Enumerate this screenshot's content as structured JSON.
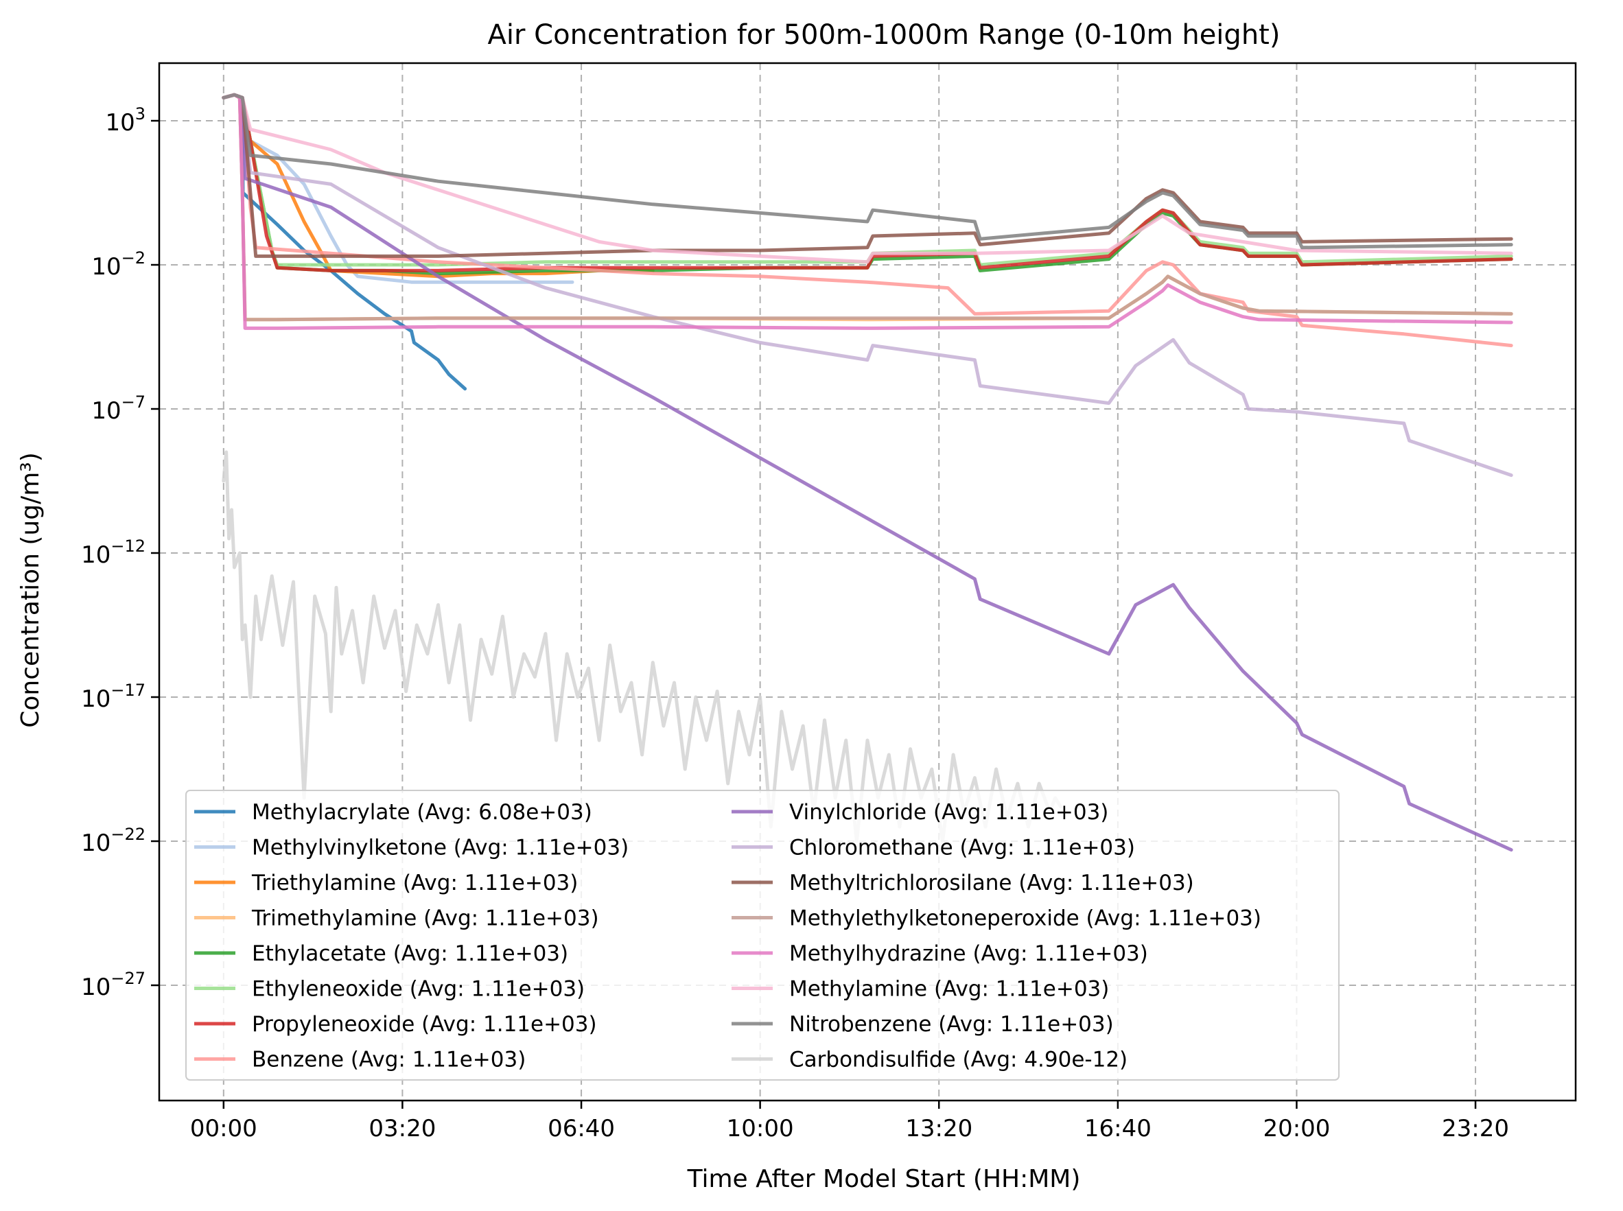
{
  "chart_data": {
    "type": "line",
    "title": "Air Concentration for 500m-1000m Range (0-10m height)",
    "xlabel": "Time After Model Start (HH:MM)",
    "ylabel": "Concentration (ug/m³)",
    "x_unit": "hours after model start",
    "xlim": [
      -1.2,
      25.2
    ],
    "xticks": [
      {
        "value": 0,
        "label": "00:00"
      },
      {
        "value": 3.333,
        "label": "03:20"
      },
      {
        "value": 6.667,
        "label": "06:40"
      },
      {
        "value": 10,
        "label": "10:00"
      },
      {
        "value": 13.333,
        "label": "13:20"
      },
      {
        "value": 16.667,
        "label": "16:40"
      },
      {
        "value": 20,
        "label": "20:00"
      },
      {
        "value": 23.333,
        "label": "23:20"
      }
    ],
    "yscale": "log",
    "ylim_log10": [
      -31.0,
      5.0
    ],
    "yticks": [
      {
        "exp": 3,
        "base": "10",
        "sup": "3"
      },
      {
        "exp": -2,
        "base": "10",
        "sup": "−2"
      },
      {
        "exp": -7,
        "base": "10",
        "sup": "−7"
      },
      {
        "exp": -12,
        "base": "10",
        "sup": "−12"
      },
      {
        "exp": -17,
        "base": "10",
        "sup": "−17"
      },
      {
        "exp": -22,
        "base": "10",
        "sup": "−22"
      },
      {
        "exp": -27,
        "base": "10",
        "sup": "−27"
      }
    ],
    "grid": true,
    "legend": {
      "placement": "lower-left",
      "columns": 2
    },
    "series": [
      {
        "name": "Methylacrylate (Avg: 6.08e+03)",
        "color": "#1f77b4",
        "x": [
          0,
          0.2,
          0.35,
          0.36,
          1.0,
          1.5,
          2.0,
          2.5,
          3.0,
          3.5,
          3.55,
          4.0,
          4.2,
          4.5
        ],
        "log10y": [
          3.8,
          3.9,
          3.8,
          0.5,
          -0.6,
          -1.5,
          -2.2,
          -3.0,
          -3.7,
          -4.3,
          -4.7,
          -5.3,
          -5.8,
          -6.3
        ]
      },
      {
        "name": "Methylvinylketone (Avg: 1.11e+03)",
        "color": "#aec7e8",
        "x": [
          0,
          0.2,
          0.35,
          0.5,
          1.0,
          1.5,
          2.0,
          2.3,
          2.5,
          3.0,
          3.5,
          4.0,
          5.0,
          6.0,
          6.5
        ],
        "log10y": [
          3.8,
          3.9,
          3.8,
          2.3,
          1.8,
          0.8,
          -1.0,
          -2.0,
          -2.4,
          -2.5,
          -2.6,
          -2.6,
          -2.6,
          -2.6,
          -2.6
        ]
      },
      {
        "name": "Triethylamine (Avg: 1.11e+03)",
        "color": "#ff7f0e",
        "x": [
          0,
          0.2,
          0.35,
          0.5,
          1.0,
          1.5,
          1.8,
          2.0,
          3.0,
          4.0,
          5.0,
          6.0,
          7.0,
          8.0
        ],
        "log10y": [
          3.8,
          3.9,
          3.8,
          2.3,
          1.5,
          -0.5,
          -1.5,
          -2.2,
          -2.3,
          -2.4,
          -2.3,
          -2.3,
          -2.2,
          -2.2
        ]
      },
      {
        "name": "Trimethylamine (Avg: 1.11e+03)",
        "color": "#ffbb78",
        "x": [
          0,
          0.2,
          0.3,
          0.35,
          0.4,
          1.0,
          4.0,
          8.0,
          12.0,
          16.5,
          17.2,
          17.5,
          17.6,
          18.2,
          19.0,
          19.3,
          24.0
        ],
        "log10y": [
          3.8,
          3.9,
          3.8,
          0.5,
          -3.9,
          -3.9,
          -3.85,
          -3.85,
          -3.9,
          -3.85,
          -3.0,
          -2.6,
          -2.4,
          -3.0,
          -3.5,
          -3.6,
          -3.7
        ]
      },
      {
        "name": "Ethylacetate (Avg: 1.11e+03)",
        "color": "#2ca02c",
        "x": [
          0,
          0.2,
          0.35,
          0.5,
          0.9,
          1.0,
          2.0,
          3.0,
          4.0,
          6.0,
          8.0,
          10.0,
          12.0,
          12.1,
          14.0,
          14.1,
          16.5,
          17.2,
          17.5,
          17.7,
          18.2,
          19.0,
          19.1,
          20.0,
          20.1,
          24.0
        ],
        "log10y": [
          3.8,
          3.9,
          3.8,
          2.3,
          -1.5,
          -2.1,
          -2.2,
          -2.2,
          -2.3,
          -2.2,
          -2.2,
          -2.1,
          -2.1,
          -1.8,
          -1.7,
          -2.2,
          -1.8,
          -0.6,
          -0.2,
          -0.3,
          -1.3,
          -1.5,
          -1.7,
          -1.7,
          -2.0,
          -1.8
        ]
      },
      {
        "name": "Ethyleneoxide (Avg: 1.11e+03)",
        "color": "#98df8a",
        "x": [
          0,
          0.2,
          0.35,
          0.5,
          0.9,
          1.0,
          2.0,
          4.0,
          6.0,
          8.0,
          10.0,
          12.0,
          12.1,
          14.0,
          14.1,
          16.5,
          17.2,
          17.5,
          17.7,
          18.2,
          19.0,
          19.1,
          20.0,
          20.1,
          24.0
        ],
        "log10y": [
          3.8,
          3.9,
          3.8,
          2.3,
          -1.5,
          -2.0,
          -2.0,
          -2.0,
          -1.9,
          -1.9,
          -1.9,
          -1.9,
          -1.6,
          -1.5,
          -2.0,
          -1.6,
          -0.5,
          -0.1,
          -0.2,
          -1.2,
          -1.4,
          -1.6,
          -1.6,
          -1.9,
          -1.7
        ]
      },
      {
        "name": "Propyleneoxide (Avg: 1.11e+03)",
        "color": "#d62728",
        "x": [
          0,
          0.2,
          0.35,
          0.5,
          0.8,
          1.0,
          2.0,
          4.0,
          6.0,
          8.0,
          10.0,
          12.0,
          12.1,
          14.0,
          14.1,
          16.5,
          17.2,
          17.5,
          17.7,
          18.2,
          19.0,
          19.1,
          20.0,
          20.1,
          24.0
        ],
        "log10y": [
          3.8,
          3.9,
          3.8,
          2.3,
          -1.0,
          -2.1,
          -2.2,
          -2.2,
          -2.1,
          -2.1,
          -2.1,
          -2.1,
          -1.7,
          -1.6,
          -2.1,
          -1.7,
          -0.5,
          -0.1,
          -0.2,
          -1.3,
          -1.5,
          -1.7,
          -1.7,
          -2.0,
          -1.8
        ]
      },
      {
        "name": "Benzene (Avg: 1.11e+03)",
        "color": "#ff9896",
        "x": [
          0,
          0.2,
          0.35,
          0.5,
          0.6,
          2.0,
          4.0,
          6.0,
          8.0,
          10.0,
          12.0,
          13.5,
          14.0,
          16.5,
          17.2,
          17.5,
          17.7,
          18.2,
          19.0,
          19.1,
          20.0,
          20.1,
          22.0,
          24.0
        ],
        "log10y": [
          3.8,
          3.9,
          3.8,
          0.0,
          -1.4,
          -1.6,
          -1.9,
          -2.1,
          -2.3,
          -2.4,
          -2.6,
          -2.8,
          -3.7,
          -3.6,
          -2.2,
          -1.9,
          -2.0,
          -3.0,
          -3.3,
          -3.6,
          -3.8,
          -4.1,
          -4.4,
          -4.8
        ]
      },
      {
        "name": "Vinylchloride (Avg: 1.11e+03)",
        "color": "#9467bd",
        "x": [
          0,
          0.2,
          0.35,
          0.4,
          2.0,
          4.0,
          6.0,
          8.0,
          10.0,
          12.0,
          14.0,
          14.1,
          16.5,
          17.0,
          17.7,
          18.0,
          19.0,
          20.0,
          20.1,
          22.0,
          22.1,
          24.0
        ],
        "log10y": [
          3.8,
          3.9,
          3.8,
          1.0,
          0.0,
          -2.4,
          -4.6,
          -6.6,
          -8.7,
          -10.8,
          -12.9,
          -13.6,
          -15.5,
          -13.8,
          -13.1,
          -13.9,
          -16.1,
          -17.9,
          -18.3,
          -20.1,
          -20.7,
          -22.3
        ]
      },
      {
        "name": "Chloromethane (Avg: 1.11e+03)",
        "color": "#c5b0d5",
        "x": [
          0,
          0.2,
          0.35,
          0.5,
          2.0,
          4.0,
          6.0,
          8.0,
          10.0,
          12.0,
          12.1,
          14.0,
          14.1,
          16.5,
          17.0,
          17.7,
          18.0,
          19.0,
          19.1,
          20.0,
          22.0,
          22.1,
          24.0
        ],
        "log10y": [
          3.8,
          3.9,
          3.8,
          1.2,
          0.8,
          -1.4,
          -2.8,
          -3.8,
          -4.7,
          -5.3,
          -4.8,
          -5.3,
          -6.2,
          -6.8,
          -5.5,
          -4.6,
          -5.4,
          -6.5,
          -7.0,
          -7.1,
          -7.5,
          -8.1,
          -9.3
        ]
      },
      {
        "name": "Methyltrichlorosilane (Avg: 1.11e+03)",
        "color": "#8c564b",
        "x": [
          0,
          0.2,
          0.35,
          0.5,
          0.6,
          2.0,
          4.0,
          6.0,
          8.0,
          10.0,
          12.0,
          12.1,
          14.0,
          14.1,
          16.5,
          17.2,
          17.5,
          17.7,
          18.2,
          19.0,
          19.1,
          20.0,
          20.1,
          24.0
        ],
        "log10y": [
          3.8,
          3.9,
          3.8,
          0.5,
          -1.7,
          -1.7,
          -1.7,
          -1.6,
          -1.5,
          -1.5,
          -1.4,
          -1.0,
          -0.9,
          -1.3,
          -0.9,
          0.3,
          0.6,
          0.5,
          -0.5,
          -0.7,
          -0.9,
          -0.9,
          -1.2,
          -1.1
        ]
      },
      {
        "name": "Methylethylketoneperoxide (Avg: 1.11e+03)",
        "color": "#c49c94",
        "x": [
          0,
          0.2,
          0.3,
          0.35,
          0.4,
          1.0,
          4.0,
          8.0,
          12.0,
          16.5,
          17.2,
          17.5,
          17.6,
          18.2,
          19.0,
          19.3,
          24.0
        ],
        "log10y": [
          3.8,
          3.9,
          3.8,
          0.5,
          -3.9,
          -3.9,
          -3.85,
          -3.85,
          -3.85,
          -3.85,
          -3.0,
          -2.6,
          -2.4,
          -3.0,
          -3.5,
          -3.6,
          -3.7
        ]
      },
      {
        "name": "Methylhydrazine (Avg: 1.11e+03)",
        "color": "#e377c2",
        "x": [
          0,
          0.2,
          0.3,
          0.35,
          0.4,
          1.0,
          4.0,
          8.0,
          12.0,
          16.5,
          17.2,
          17.5,
          17.6,
          18.2,
          19.0,
          19.3,
          24.0
        ],
        "log10y": [
          3.8,
          3.9,
          3.8,
          0.5,
          -4.2,
          -4.2,
          -4.15,
          -4.15,
          -4.2,
          -4.15,
          -3.3,
          -2.9,
          -2.7,
          -3.3,
          -3.8,
          -3.9,
          -4.0
        ]
      },
      {
        "name": "Methylamine (Avg: 1.11e+03)",
        "color": "#f7b6d2",
        "x": [
          0,
          0.2,
          0.35,
          0.5,
          2.0,
          3.0,
          4.0,
          5.0,
          6.0,
          7.0,
          8.0,
          10.0,
          12.0,
          12.1,
          14.0,
          16.5,
          17.5,
          18.0,
          20.0,
          24.0
        ],
        "log10y": [
          3.8,
          3.9,
          3.8,
          2.7,
          2.0,
          1.2,
          0.6,
          0.0,
          -0.6,
          -1.2,
          -1.5,
          -1.7,
          -1.9,
          -1.6,
          -1.6,
          -1.5,
          -0.3,
          -0.9,
          -1.5,
          -1.6
        ]
      },
      {
        "name": "Nitrobenzene (Avg: 1.11e+03)",
        "color": "#7f7f7f",
        "x": [
          0,
          0.2,
          0.35,
          0.5,
          1.0,
          2.0,
          3.0,
          4.0,
          6.0,
          8.0,
          10.0,
          12.0,
          12.1,
          14.0,
          14.1,
          16.5,
          17.2,
          17.5,
          17.7,
          18.2,
          19.0,
          19.1,
          20.0,
          20.1,
          24.0
        ],
        "log10y": [
          3.8,
          3.9,
          3.8,
          1.8,
          1.7,
          1.5,
          1.2,
          0.9,
          0.5,
          0.1,
          -0.2,
          -0.5,
          -0.1,
          -0.5,
          -1.1,
          -0.7,
          0.2,
          0.5,
          0.4,
          -0.6,
          -0.8,
          -1.0,
          -1.0,
          -1.4,
          -1.3
        ]
      },
      {
        "name": "Carbondisulfide (Avg: 4.90e-12)",
        "color": "#d3d3d3",
        "x": [
          0,
          0.05,
          0.1,
          0.15,
          0.2,
          0.3,
          0.35,
          0.4,
          0.5,
          0.6,
          0.7,
          0.9,
          1.1,
          1.3,
          1.5,
          1.7,
          1.9,
          2.0,
          2.1,
          2.2,
          2.4,
          2.6,
          2.8,
          3.0,
          3.2,
          3.4,
          3.6,
          3.8,
          4.0,
          4.2,
          4.4,
          4.6,
          4.8,
          5.0,
          5.2,
          5.4,
          5.6,
          5.8,
          6.0,
          6.2,
          6.4,
          6.6,
          6.8,
          7.0,
          7.2,
          7.4,
          7.6,
          7.8,
          8.0,
          8.2,
          8.4,
          8.6,
          8.8,
          9.0,
          9.2,
          9.4,
          9.6,
          9.8,
          10.0,
          10.2,
          10.4,
          10.6,
          10.8,
          11.0,
          11.2,
          11.4,
          11.6,
          11.8,
          12.0,
          12.2,
          12.4,
          12.6,
          12.8,
          13.0,
          13.2,
          13.4,
          13.6,
          13.8,
          14.0,
          14.2,
          14.4,
          14.6,
          14.8,
          15.0,
          15.2,
          15.4,
          15.5,
          15.6
        ],
        "log10y": [
          -9.5,
          -8.5,
          -11.5,
          -10.5,
          -12.5,
          -12.0,
          -15.0,
          -14.5,
          -17.0,
          -13.5,
          -15.0,
          -12.8,
          -15.2,
          -13.0,
          -20.5,
          -13.5,
          -14.8,
          -17.5,
          -13.2,
          -15.5,
          -14.0,
          -16.5,
          -13.5,
          -15.3,
          -14.0,
          -16.8,
          -14.5,
          -15.5,
          -13.8,
          -16.5,
          -14.5,
          -17.8,
          -15.0,
          -16.2,
          -14.2,
          -17.0,
          -15.5,
          -16.3,
          -14.8,
          -18.5,
          -15.5,
          -17.0,
          -16.0,
          -18.5,
          -15.2,
          -17.5,
          -16.5,
          -19.0,
          -15.8,
          -18.0,
          -16.5,
          -19.5,
          -17.0,
          -18.5,
          -16.8,
          -20.0,
          -17.5,
          -19.0,
          -17.0,
          -21.5,
          -17.5,
          -19.5,
          -18.0,
          -21.0,
          -17.8,
          -20.5,
          -18.5,
          -22.0,
          -18.5,
          -20.5,
          -19.0,
          -21.5,
          -18.8,
          -20.5,
          -19.5,
          -22.0,
          -19.0,
          -21.0,
          -19.8,
          -21.5,
          -19.5,
          -21.2,
          -20.0,
          -21.5,
          -20.0,
          -21.0,
          -20.5,
          -20.8
        ]
      }
    ]
  }
}
